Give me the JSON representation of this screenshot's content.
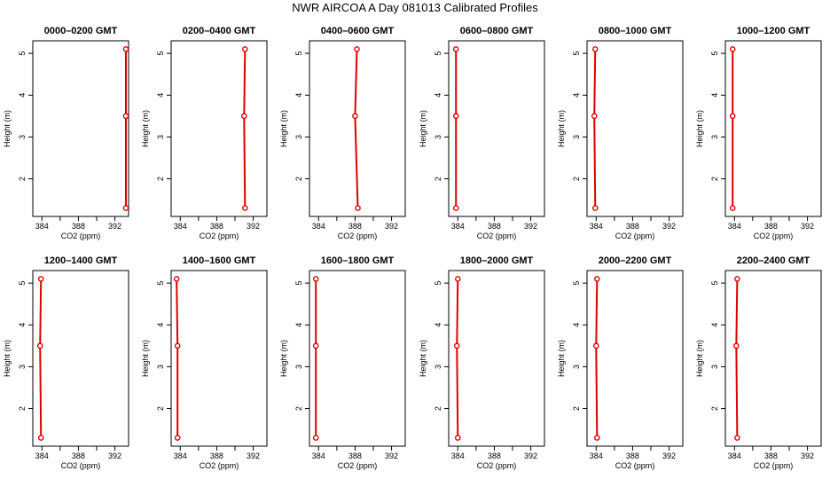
{
  "title": "NWR AIRCOA A  Day 081013  Calibrated Profiles",
  "chart_data": [
    {
      "type": "line",
      "title": "0000–0200 GMT",
      "xlabel": "CO2 (ppm)",
      "ylabel": "Height (m)",
      "xlim": [
        383,
        393.5
      ],
      "ylim": [
        1.1,
        5.3
      ],
      "xticks": [
        "384",
        "388",
        "392"
      ],
      "yticks": [
        "2",
        "3",
        "4",
        "5"
      ],
      "series": [
        {
          "x": [
            393.5,
            393.3,
            393.5
          ],
          "y": [
            1.3,
            3.5,
            5.1
          ]
        }
      ]
    },
    {
      "type": "line",
      "title": "0200–0400 GMT",
      "xlabel": "CO2 (ppm)",
      "ylabel": "Height (m)",
      "xlim": [
        383,
        393.5
      ],
      "ylim": [
        1.1,
        5.3
      ],
      "xticks": [
        "384",
        "388",
        "392"
      ],
      "yticks": [
        "2",
        "3",
        "4",
        "5"
      ],
      "series": [
        {
          "x": [
            391.1,
            391.0,
            391.1
          ],
          "y": [
            1.3,
            3.5,
            5.1
          ]
        }
      ]
    },
    {
      "type": "line",
      "title": "0400–0600 GMT",
      "xlabel": "CO2 (ppm)",
      "ylabel": "Height (m)",
      "xlim": [
        383,
        393.5
      ],
      "ylim": [
        1.1,
        5.3
      ],
      "xticks": [
        "384",
        "388",
        "392"
      ],
      "yticks": [
        "2",
        "3",
        "4",
        "5"
      ],
      "series": [
        {
          "x": [
            388.3,
            388.0,
            388.2
          ],
          "y": [
            1.3,
            3.5,
            5.1
          ]
        }
      ]
    },
    {
      "type": "line",
      "title": "0600–0800 GMT",
      "xlabel": "CO2 (ppm)",
      "ylabel": "Height (m)",
      "xlim": [
        383,
        393.5
      ],
      "ylim": [
        1.1,
        5.3
      ],
      "xticks": [
        "384",
        "388",
        "392"
      ],
      "yticks": [
        "2",
        "3",
        "4",
        "5"
      ],
      "series": [
        {
          "x": [
            383.8,
            383.8,
            383.8
          ],
          "y": [
            1.3,
            3.5,
            5.1
          ]
        }
      ]
    },
    {
      "type": "line",
      "title": "0800–1000 GMT",
      "xlabel": "CO2 (ppm)",
      "ylabel": "Height (m)",
      "xlim": [
        383,
        393.5
      ],
      "ylim": [
        1.1,
        5.3
      ],
      "xticks": [
        "384",
        "388",
        "392"
      ],
      "yticks": [
        "2",
        "3",
        "4",
        "5"
      ],
      "series": [
        {
          "x": [
            383.9,
            383.8,
            383.9
          ],
          "y": [
            1.3,
            3.5,
            5.1
          ]
        }
      ]
    },
    {
      "type": "line",
      "title": "1000–1200 GMT",
      "xlabel": "CO2 (ppm)",
      "ylabel": "Height (m)",
      "xlim": [
        383,
        393.5
      ],
      "ylim": [
        1.1,
        5.3
      ],
      "xticks": [
        "384",
        "388",
        "392"
      ],
      "yticks": [
        "2",
        "3",
        "4",
        "5"
      ],
      "series": [
        {
          "x": [
            383.8,
            383.8,
            383.8
          ],
          "y": [
            1.3,
            3.5,
            5.1
          ]
        }
      ]
    },
    {
      "type": "line",
      "title": "1200–1400 GMT",
      "xlabel": "CO2 (ppm)",
      "ylabel": "Height (m)",
      "xlim": [
        383,
        393.5
      ],
      "ylim": [
        1.1,
        5.3
      ],
      "xticks": [
        "384",
        "388",
        "392"
      ],
      "yticks": [
        "2",
        "3",
        "4",
        "5"
      ],
      "series": [
        {
          "x": [
            383.9,
            383.8,
            383.9
          ],
          "y": [
            1.3,
            3.5,
            5.1
          ]
        }
      ]
    },
    {
      "type": "line",
      "title": "1400–1600 GMT",
      "xlabel": "CO2 (ppm)",
      "ylabel": "Height (m)",
      "xlim": [
        383,
        393.5
      ],
      "ylim": [
        1.1,
        5.3
      ],
      "xticks": [
        "384",
        "388",
        "392"
      ],
      "yticks": [
        "2",
        "3",
        "4",
        "5"
      ],
      "series": [
        {
          "x": [
            383.7,
            383.7,
            383.6
          ],
          "y": [
            1.3,
            3.5,
            5.1
          ]
        }
      ]
    },
    {
      "type": "line",
      "title": "1600–1800 GMT",
      "xlabel": "CO2 (ppm)",
      "ylabel": "Height (m)",
      "xlim": [
        383,
        393.5
      ],
      "ylim": [
        1.1,
        5.3
      ],
      "xticks": [
        "384",
        "388",
        "392"
      ],
      "yticks": [
        "2",
        "3",
        "4",
        "5"
      ],
      "series": [
        {
          "x": [
            383.7,
            383.7,
            383.7
          ],
          "y": [
            1.3,
            3.5,
            5.1
          ]
        }
      ]
    },
    {
      "type": "line",
      "title": "1800–2000 GMT",
      "xlabel": "CO2 (ppm)",
      "ylabel": "Height (m)",
      "xlim": [
        383,
        393.5
      ],
      "ylim": [
        1.1,
        5.3
      ],
      "xticks": [
        "384",
        "388",
        "392"
      ],
      "yticks": [
        "2",
        "3",
        "4",
        "5"
      ],
      "series": [
        {
          "x": [
            384.0,
            383.9,
            384.0
          ],
          "y": [
            1.3,
            3.5,
            5.1
          ]
        }
      ]
    },
    {
      "type": "line",
      "title": "2000–2200 GMT",
      "xlabel": "CO2 (ppm)",
      "ylabel": "Height (m)",
      "xlim": [
        383,
        393.5
      ],
      "ylim": [
        1.1,
        5.3
      ],
      "xticks": [
        "384",
        "388",
        "392"
      ],
      "yticks": [
        "2",
        "3",
        "4",
        "5"
      ],
      "series": [
        {
          "x": [
            384.1,
            384.0,
            384.1
          ],
          "y": [
            1.3,
            3.5,
            5.1
          ]
        }
      ]
    },
    {
      "type": "line",
      "title": "2200–2400 GMT",
      "xlabel": "CO2 (ppm)",
      "ylabel": "Height (m)",
      "xlim": [
        383,
        393.5
      ],
      "ylim": [
        1.1,
        5.3
      ],
      "xticks": [
        "384",
        "388",
        "392"
      ],
      "yticks": [
        "2",
        "3",
        "4",
        "5"
      ],
      "series": [
        {
          "x": [
            384.3,
            384.2,
            384.3
          ],
          "y": [
            1.3,
            3.5,
            5.1
          ]
        }
      ]
    }
  ],
  "colors": {
    "series_line": "#dd0000",
    "series_point": "#dd0000",
    "axis": "#000000",
    "background": "#ffffff"
  }
}
